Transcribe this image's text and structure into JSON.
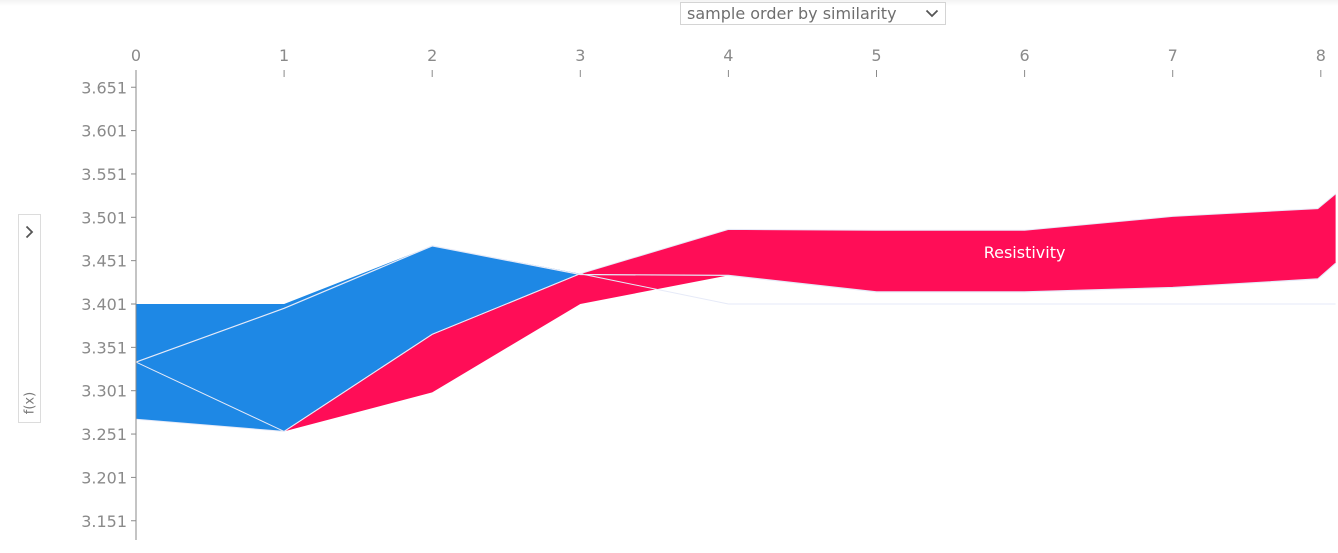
{
  "controls": {
    "order_select_label": "sample order by similarity",
    "order_select_icon": "chevron-down-icon",
    "side_toggle_icon": "chevron-right-icon",
    "side_label": "f(x)"
  },
  "colors": {
    "positive": "#ff0d57",
    "negative": "#1e88e5",
    "divider": "#e6eaf8",
    "axis": "#8a8a8a",
    "tick_text": "#8a8a8a",
    "feature_label_text": "#ffffff"
  },
  "chart_data": {
    "type": "area",
    "base_value": 3.401,
    "x_ticks": [
      "0",
      "1",
      "2",
      "3",
      "4",
      "5",
      "6",
      "7",
      "8"
    ],
    "y_ticks": [
      "3.651",
      "3.601",
      "3.551",
      "3.501",
      "3.451",
      "3.401",
      "3.351",
      "3.301",
      "3.251",
      "3.201",
      "3.151"
    ],
    "x": [
      0,
      1,
      2,
      3,
      4,
      5,
      6,
      7,
      7.98,
      8.1
    ],
    "output": [
      3.334,
      3.396,
      3.468,
      3.435,
      3.434,
      3.415,
      3.415,
      3.42,
      3.43,
      3.448
    ],
    "series": [
      {
        "name": "Resistivity",
        "sign": "positive",
        "lower": [
          3.334,
          3.254,
          3.299,
          3.401,
          3.434,
          3.415,
          3.415,
          3.42,
          3.43,
          3.448
        ],
        "upper": [
          3.334,
          3.254,
          3.366,
          3.436,
          3.487,
          3.486,
          3.486,
          3.502,
          3.511,
          3.528
        ]
      }
    ],
    "negative_band": {
      "upper": [
        3.401,
        3.401,
        3.468,
        3.436,
        3.401,
        3.401,
        3.401,
        3.401,
        3.401,
        3.401
      ],
      "lower": [
        3.268,
        3.254,
        3.366,
        3.436,
        3.401,
        3.401,
        3.401,
        3.401,
        3.401,
        3.401
      ]
    },
    "labels": [
      {
        "text": "Resistivity",
        "x": 6.0,
        "y": 3.461
      }
    ],
    "xlim": [
      0,
      8.1
    ],
    "ylim": [
      3.131,
      3.671
    ],
    "xlabel": "",
    "ylabel": "f(x)",
    "grid": false,
    "legend": "none"
  }
}
